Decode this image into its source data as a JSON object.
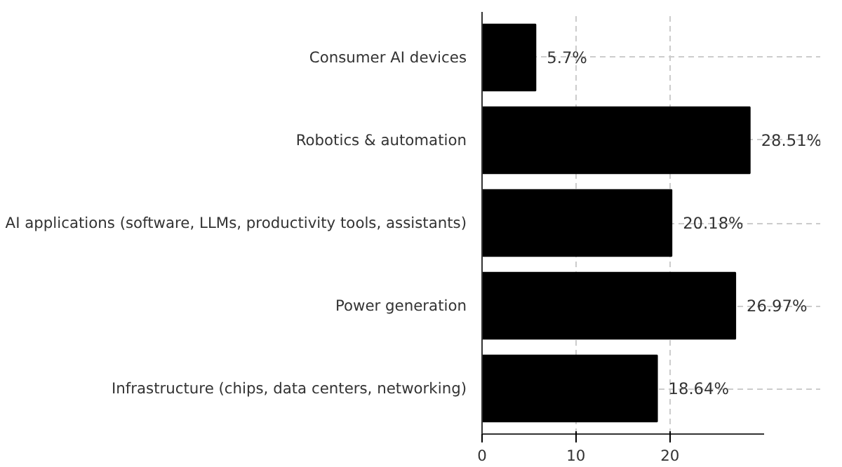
{
  "chart_data": {
    "type": "bar",
    "orientation": "horizontal",
    "categories": [
      "Consumer AI devices",
      "Robotics & automation",
      "AI applications (software, LLMs, productivity tools, assistants)",
      "Power generation",
      "Infrastructure (chips, data centers, networking)"
    ],
    "values": [
      5.7,
      28.51,
      20.18,
      26.97,
      18.64
    ],
    "value_labels": [
      "5.7%",
      "28.51%",
      "20.18%",
      "26.97%",
      "18.64%"
    ],
    "color": "#000000",
    "xlim": [
      0,
      30
    ],
    "xticks": [
      0,
      10,
      20
    ],
    "grid": true
  }
}
